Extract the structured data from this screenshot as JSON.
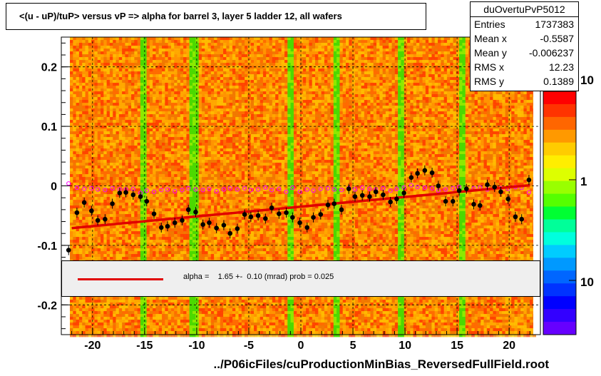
{
  "title": "<(u - uP)/tuP> versus   vP => alpha for barrel 3, layer 5 ladder 12, all wafers",
  "x_axis_label": "../P06icFiles/cuProductionMinBias_ReversedFullField.root",
  "stats": {
    "name": "duOvertuPvP5012",
    "rows": [
      {
        "key": "Entries",
        "value": "1737383"
      },
      {
        "key": "Mean x",
        "value": "-0.5587"
      },
      {
        "key": "Mean y",
        "value": "-0.006237"
      },
      {
        "key": "RMS x",
        "value": "12.23"
      },
      {
        "key": "RMS y",
        "value": "0.1389"
      }
    ]
  },
  "legend": {
    "text": "alpha =    1.65 +-  0.10 (mrad) prob = 0.025",
    "color": "#e00000"
  },
  "colorbar": {
    "labels": [
      "10",
      "1",
      "10"
    ],
    "label_values": [
      10,
      1,
      0.1
    ]
  },
  "colors": {
    "hist_base": "#ff7f00",
    "fit_line": "#e00000",
    "profile_points": "#000000",
    "open_markers": "#ff00ff"
  },
  "chart_data": {
    "type": "scatter",
    "xlim": [
      -23,
      23
    ],
    "ylim": [
      -0.25,
      0.25
    ],
    "x_ticks": [
      -20,
      -15,
      -10,
      -5,
      0,
      5,
      10,
      15,
      20
    ],
    "x_tick_labels": [
      "-20",
      "-15",
      "-10",
      "-5",
      "0",
      "5",
      "10",
      "15",
      "20"
    ],
    "y_ticks": [
      -0.2,
      -0.1,
      0,
      0.1,
      0.2
    ],
    "y_tick_labels": [
      "-0.2",
      "-0.1",
      "0",
      "0.1",
      "0.2"
    ],
    "grid": true,
    "fit_line": {
      "x": [
        -22,
        22
      ],
      "y": [
        -0.071,
        0.001
      ]
    },
    "series": [
      {
        "marker": "filled-circle",
        "x": [
          -22.3,
          -21.5,
          -20.8,
          -20.1,
          -19.5,
          -18.8,
          -18.1,
          -17.4,
          -16.8,
          -16.1,
          -15.4,
          -14.8,
          -14.1,
          -13.4,
          -12.8,
          -12.1,
          -11.4,
          -10.8,
          -10.1,
          -9.4,
          -8.8,
          -8.1,
          -7.4,
          -6.8,
          -6.1,
          -5.4,
          -4.8,
          -4.1,
          -3.4,
          -2.8,
          -2.1,
          -1.4,
          -0.8,
          -0.1,
          0.6,
          1.2,
          1.9,
          2.6,
          3.2,
          3.9,
          4.6,
          5.2,
          5.9,
          6.6,
          7.2,
          7.9,
          8.6,
          9.2,
          9.9,
          10.6,
          11.2,
          11.9,
          12.6,
          13.2,
          13.9,
          14.6,
          15.2,
          15.9,
          16.6,
          17.2,
          17.9,
          18.6,
          19.2,
          19.9,
          20.6,
          21.2,
          21.9
        ],
        "y": [
          -0.108,
          -0.045,
          -0.028,
          -0.042,
          -0.058,
          -0.056,
          -0.03,
          -0.012,
          -0.011,
          -0.015,
          -0.018,
          -0.026,
          -0.047,
          -0.07,
          -0.068,
          -0.062,
          -0.058,
          -0.04,
          -0.044,
          -0.065,
          -0.062,
          -0.071,
          -0.066,
          -0.08,
          -0.072,
          -0.048,
          -0.052,
          -0.05,
          -0.055,
          -0.037,
          -0.047,
          -0.045,
          -0.053,
          -0.062,
          -0.07,
          -0.053,
          -0.048,
          -0.032,
          -0.03,
          -0.04,
          -0.005,
          -0.018,
          -0.016,
          -0.018,
          -0.01,
          -0.015,
          -0.027,
          -0.022,
          -0.012,
          0.014,
          0.021,
          0.026,
          0.022,
          0.0,
          -0.026,
          -0.026,
          -0.008,
          -0.005,
          -0.031,
          -0.033,
          0.002,
          -0.002,
          -0.01,
          -0.022,
          -0.052,
          -0.056,
          0.01
        ]
      },
      {
        "marker": "open-circle",
        "x": [
          -22.3,
          -21.5,
          -20.8,
          -20.1,
          -19.5,
          -18.8,
          -18.1,
          -17.4,
          -16.8,
          -16.1,
          -15.4,
          -14.8,
          -14.1,
          -13.4,
          -12.8,
          -12.1,
          -11.4,
          -10.8,
          -10.1,
          -9.4,
          -8.8,
          -8.1,
          -7.4,
          -6.8,
          -6.1,
          -5.4,
          -4.8,
          -4.1,
          -3.4,
          -2.8,
          -2.1,
          -1.4,
          -0.8,
          -0.1,
          0.6,
          1.2,
          1.9,
          2.6,
          3.2,
          3.9,
          4.6,
          5.2,
          5.9,
          6.6,
          7.2,
          7.9,
          8.6,
          9.2,
          9.9,
          10.6,
          11.2,
          11.9,
          12.6,
          13.2,
          13.9,
          14.6,
          15.2,
          15.9,
          16.6,
          17.2,
          17.9,
          18.6,
          19.2,
          19.9,
          20.6,
          21.2,
          21.9
        ],
        "y": [
          0.004,
          -0.003,
          -0.005,
          -0.004,
          -0.006,
          -0.007,
          -0.004,
          -0.006,
          -0.006,
          -0.005,
          -0.012,
          -0.008,
          -0.01,
          -0.007,
          -0.006,
          -0.009,
          -0.007,
          -0.004,
          -0.006,
          -0.007,
          -0.005,
          -0.009,
          -0.006,
          -0.004,
          -0.006,
          -0.004,
          -0.007,
          -0.006,
          -0.003,
          -0.007,
          -0.005,
          -0.01,
          -0.003,
          -0.01,
          -0.006,
          -0.008,
          -0.005,
          -0.004,
          -0.006,
          -0.007,
          -0.004,
          -0.006,
          -0.003,
          -0.005,
          -0.006,
          -0.004,
          -0.008,
          -0.005,
          -0.003,
          0.001,
          -0.002,
          -0.003,
          -0.004,
          -0.008,
          -0.006,
          -0.004,
          -0.002,
          -0.005,
          -0.004,
          -0.003,
          -0.006,
          -0.002,
          -0.004,
          -0.005,
          -0.002,
          -0.003,
          -0.011
        ]
      }
    ]
  }
}
